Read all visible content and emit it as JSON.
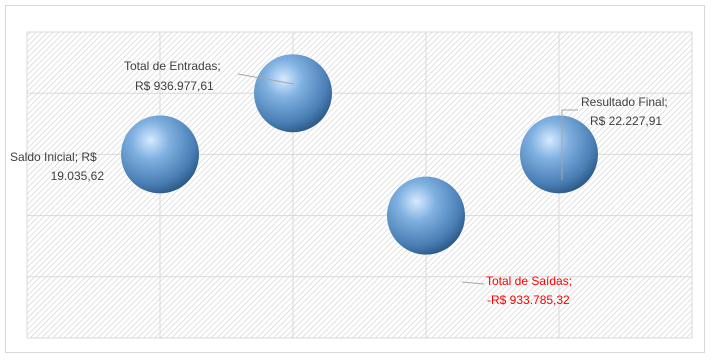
{
  "chart_data": {
    "type": "scatter",
    "style": "bubble",
    "title": "",
    "xlabel": "",
    "ylabel": "",
    "grid": true,
    "legend": "none",
    "colors": {
      "bubble": "#5b9bd5",
      "bubble_light": "#d6eaff",
      "bubble_dark": "#2e5c8a",
      "grid": "#d9d9d9",
      "hatch": "#c8c8c8",
      "label": "#404040",
      "negative_label": "#ff0000",
      "leader": "#a6a6a6"
    },
    "x_categories": 5,
    "y_categories": 5,
    "points": [
      {
        "x": 1,
        "y": 3,
        "name": "Saldo Inicial;",
        "value_text": "R$ 19.035,62",
        "value": 19035.62,
        "negative": false
      },
      {
        "x": 2,
        "y": 4,
        "name": "Total de Entradas;",
        "value_text": "R$ 936.977,61",
        "value": 936977.61,
        "negative": false
      },
      {
        "x": 3,
        "y": 2,
        "name": "Total de Saídas;",
        "value_text": "-R$ 933.785,32",
        "value": -933785.32,
        "negative": true
      },
      {
        "x": 4,
        "y": 3,
        "name": "Resultado Final;",
        "value_text": "R$ 22.227,91",
        "value": 22227.91,
        "negative": false
      }
    ]
  }
}
